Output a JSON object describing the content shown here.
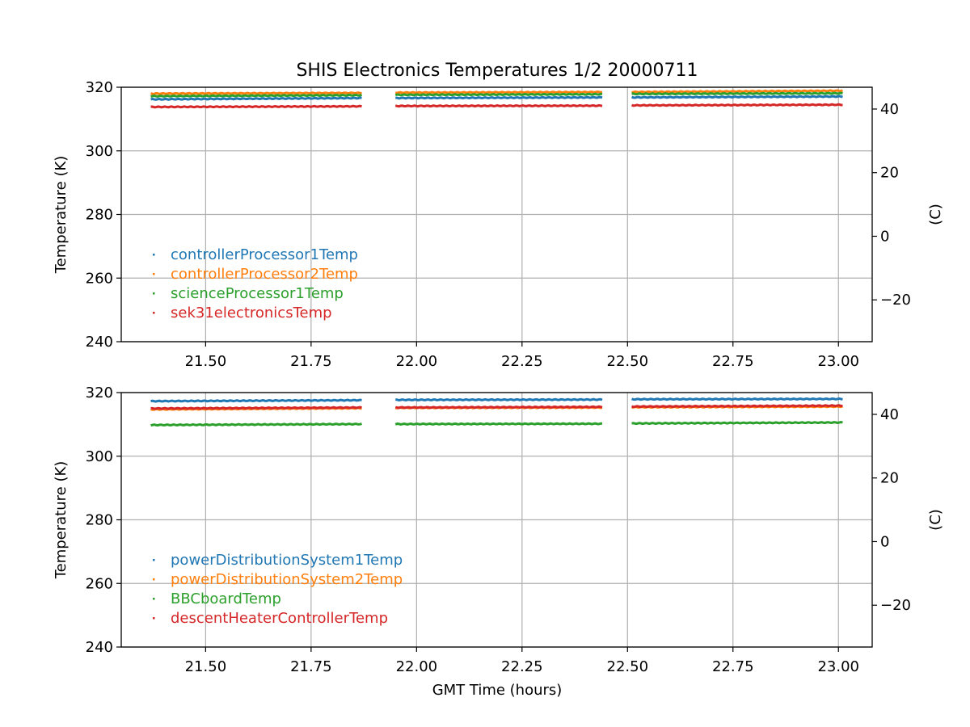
{
  "figure": {
    "title": "SHIS Electronics Temperatures 1/2 20000711",
    "xlabel": "GMT Time (hours)"
  },
  "chart_data": [
    {
      "type": "scatter",
      "panel": "top",
      "ylabel": "Temperature (K)",
      "y2label": "(C)",
      "xlim": [
        21.3,
        23.08
      ],
      "ylim": [
        240,
        320
      ],
      "y2lim": [
        -33.15,
        46.85
      ],
      "xticks": [
        "21.50",
        "21.75",
        "22.00",
        "22.25",
        "22.50",
        "22.75",
        "23.00"
      ],
      "xtick_values": [
        21.5,
        21.75,
        22.0,
        22.25,
        22.5,
        22.75,
        23.0
      ],
      "yticks": [
        240,
        260,
        280,
        300,
        320
      ],
      "y2ticks": [
        40,
        20,
        0,
        -20
      ],
      "y2tick_labels": [
        "40",
        "20",
        "0",
        "−20"
      ],
      "grid": true,
      "legend_position": "lower-left",
      "segments": [
        [
          21.37,
          21.87
        ],
        [
          21.95,
          22.44
        ],
        [
          22.51,
          23.01
        ]
      ],
      "series": [
        {
          "name": "controllerProcessor1Temp",
          "color": "#1f77b4",
          "y": [
            [
              316.2,
              316.6
            ],
            [
              316.6,
              316.8
            ],
            [
              316.8,
              317.1
            ]
          ]
        },
        {
          "name": "controllerProcessor2Temp",
          "color": "#ff7f0e",
          "y": [
            [
              318.0,
              318.2
            ],
            [
              318.3,
              318.5
            ],
            [
              318.5,
              318.9
            ]
          ]
        },
        {
          "name": "scienceProcessor1Temp",
          "color": "#2ca02c",
          "y": [
            [
              317.2,
              317.5
            ],
            [
              317.6,
              317.8
            ],
            [
              317.9,
              318.1
            ]
          ]
        },
        {
          "name": "sek31electronicsTemp",
          "color": "#d62728",
          "y": [
            [
              313.8,
              314.0
            ],
            [
              314.1,
              314.2
            ],
            [
              314.3,
              314.5
            ]
          ]
        }
      ]
    },
    {
      "type": "scatter",
      "panel": "bottom",
      "ylabel": "Temperature (K)",
      "y2label": "(C)",
      "xlim": [
        21.3,
        23.08
      ],
      "ylim": [
        240,
        320
      ],
      "y2lim": [
        -33.15,
        46.85
      ],
      "xticks": [
        "21.50",
        "21.75",
        "22.00",
        "22.25",
        "22.50",
        "22.75",
        "23.00"
      ],
      "xtick_values": [
        21.5,
        21.75,
        22.0,
        22.25,
        22.5,
        22.75,
        23.0
      ],
      "yticks": [
        240,
        260,
        280,
        300,
        320
      ],
      "y2ticks": [
        40,
        20,
        0,
        -20
      ],
      "y2tick_labels": [
        "40",
        "20",
        "0",
        "−20"
      ],
      "grid": true,
      "legend_position": "lower-left",
      "segments": [
        [
          21.37,
          21.87
        ],
        [
          21.95,
          22.44
        ],
        [
          22.51,
          23.01
        ]
      ],
      "series": [
        {
          "name": "powerDistributionSystem1Temp",
          "color": "#1f77b4",
          "y": [
            [
              317.3,
              317.6
            ],
            [
              317.7,
              317.8
            ],
            [
              317.9,
              318.0
            ]
          ]
        },
        {
          "name": "powerDistributionSystem2Temp",
          "color": "#ff7f0e",
          "y": [
            [
              314.7,
              315.1
            ],
            [
              315.2,
              315.3
            ],
            [
              315.4,
              315.6
            ]
          ]
        },
        {
          "name": "BBCboardTemp",
          "color": "#2ca02c",
          "y": [
            [
              309.8,
              310.1
            ],
            [
              310.1,
              310.2
            ],
            [
              310.3,
              310.6
            ]
          ]
        },
        {
          "name": "descentHeaterControllerTemp",
          "color": "#d62728",
          "y": [
            [
              315.0,
              315.3
            ],
            [
              315.3,
              315.5
            ],
            [
              315.6,
              315.9
            ]
          ]
        }
      ]
    }
  ]
}
